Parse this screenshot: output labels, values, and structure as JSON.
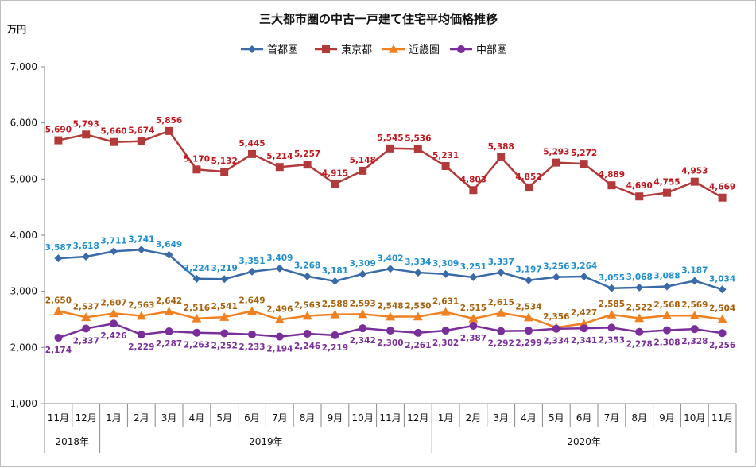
{
  "chart_data": {
    "type": "line",
    "title": "三大都市圏の中古一戸建て住宅平均価格推移",
    "unit_label": "万円",
    "ylim": [
      1000,
      7000
    ],
    "y_ticks": [
      "1,000",
      "2,000",
      "3,000",
      "4,000",
      "5,000",
      "6,000",
      "7,000"
    ],
    "y_tick_values": [
      1000,
      2000,
      3000,
      4000,
      5000,
      6000,
      7000
    ],
    "categories": [
      "11月",
      "12月",
      "1月",
      "2月",
      "3月",
      "4月",
      "5月",
      "6月",
      "7月",
      "8月",
      "9月",
      "10月",
      "11月",
      "12月",
      "1月",
      "2月",
      "3月",
      "4月",
      "5月",
      "6月",
      "7月",
      "8月",
      "9月",
      "10月",
      "11月"
    ],
    "year_groups": [
      {
        "label": "2018年",
        "start": 0,
        "count": 2
      },
      {
        "label": "2019年",
        "start": 2,
        "count": 12
      },
      {
        "label": "2020年",
        "start": 14,
        "count": 11
      }
    ],
    "legend_position": "top-center",
    "grid": false,
    "series": [
      {
        "name": "首都圏",
        "color": "#3a6aa8",
        "label_color": "#1f8fd0",
        "marker": "diamond",
        "label_pos": "above",
        "values": [
          3587,
          3618,
          3711,
          3741,
          3649,
          3224,
          3219,
          3351,
          3409,
          3268,
          3181,
          3309,
          3402,
          3334,
          3309,
          3251,
          3337,
          3197,
          3256,
          3264,
          3055,
          3068,
          3088,
          3187,
          3034
        ],
        "labels": [
          "3,587",
          "3,618",
          "3,711",
          "3,741",
          "3,649",
          "3,224",
          "3,219",
          "3,351",
          "3,409",
          "3,268",
          "3,181",
          "3,309",
          "3,402",
          "3,334",
          "3,309",
          "3,251",
          "3,337",
          "3,197",
          "3,256",
          "3,264",
          "3,055",
          "3,068",
          "3,088",
          "3,187",
          "3,034"
        ]
      },
      {
        "name": "東京都",
        "color": "#b23a3a",
        "label_color": "#c0181e",
        "marker": "square",
        "label_pos": "above",
        "values": [
          5690,
          5793,
          5660,
          5674,
          5856,
          5170,
          5132,
          5445,
          5214,
          5257,
          4915,
          5148,
          5545,
          5536,
          5231,
          4803,
          5388,
          4852,
          5293,
          5272,
          4889,
          4690,
          4755,
          4953,
          4669
        ],
        "labels": [
          "5,690",
          "5,793",
          "5,660",
          "5,674",
          "5,856",
          "5,170",
          "5,132",
          "5,445",
          "5,214",
          "5,257",
          "4,915",
          "5,148",
          "5,545",
          "5,536",
          "5,231",
          "4,803",
          "5,388",
          "4,852",
          "5,293",
          "5,272",
          "4,889",
          "4,690",
          "4,755",
          "4,953",
          "4,669"
        ]
      },
      {
        "name": "近畿圏",
        "color": "#f08020",
        "label_color": "#a8620e",
        "marker": "triangle",
        "label_pos": "above",
        "values": [
          2650,
          2537,
          2607,
          2563,
          2642,
          2516,
          2541,
          2649,
          2496,
          2563,
          2588,
          2593,
          2548,
          2550,
          2631,
          2515,
          2615,
          2534,
          2356,
          2427,
          2585,
          2522,
          2568,
          2569,
          2504
        ],
        "labels": [
          "2,650",
          "2,537",
          "2,607",
          "2,563",
          "2,642",
          "2,516",
          "2,541",
          "2,649",
          "2,496",
          "2,563",
          "2,588",
          "2,593",
          "2,548",
          "2,550",
          "2,631",
          "2,515",
          "2,615",
          "2,534",
          "2,356",
          "2,427",
          "2,585",
          "2,522",
          "2,568",
          "2,569",
          "2,504"
        ]
      },
      {
        "name": "中部圏",
        "color": "#7a2e9a",
        "label_color": "#7a2e9a",
        "marker": "circle",
        "label_pos": "below",
        "values": [
          2174,
          2337,
          2426,
          2229,
          2287,
          2263,
          2252,
          2233,
          2194,
          2246,
          2219,
          2342,
          2300,
          2261,
          2302,
          2387,
          2292,
          2299,
          2334,
          2341,
          2353,
          2278,
          2308,
          2328,
          2256
        ],
        "labels": [
          "2,174",
          "2,337",
          "2,426",
          "2,229",
          "2,287",
          "2,263",
          "2,252",
          "2,233",
          "2,194",
          "2,246",
          "2,219",
          "2,342",
          "2,300",
          "2,261",
          "2,302",
          "2,387",
          "2,292",
          "2,299",
          "2,334",
          "2,341",
          "2,353",
          "2,278",
          "2,308",
          "2,328",
          "2,256"
        ]
      }
    ]
  }
}
